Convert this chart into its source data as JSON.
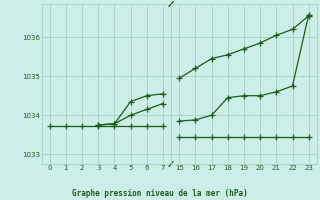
{
  "bg_color": "#cceee8",
  "grid_color": "#99ccbb",
  "line_color": "#1a5c1a",
  "title": "Graphe pression niveau de la mer (hPa)",
  "ylabel_ticks": [
    1033,
    1034,
    1035,
    1036
  ],
  "ylim": [
    1032.75,
    1036.85
  ],
  "x_ticks_left": [
    0,
    1,
    2,
    3,
    4,
    5,
    6,
    7
  ],
  "x_ticks_right": [
    15,
    16,
    17,
    18,
    19,
    20,
    21,
    22,
    23
  ],
  "lines": [
    {
      "x": [
        0,
        1,
        2,
        3,
        4,
        5,
        6,
        7,
        15,
        16,
        17,
        18,
        19,
        20,
        21,
        22,
        23
      ],
      "y": [
        1033.72,
        1033.72,
        1033.72,
        1033.72,
        1033.72,
        1033.72,
        1033.72,
        1033.72,
        1033.45,
        1033.45,
        1033.45,
        1033.45,
        1033.45,
        1033.45,
        1033.45,
        1033.45,
        1033.45
      ]
    },
    {
      "x": [
        3,
        4,
        5,
        6,
        7,
        15,
        16,
        17,
        18,
        19,
        20,
        21,
        22,
        23
      ],
      "y": [
        1033.75,
        1033.78,
        1034.0,
        1034.15,
        1034.3,
        1034.95,
        1035.2,
        1035.45,
        1035.55,
        1035.7,
        1035.85,
        1036.05,
        1036.2,
        1036.55
      ]
    },
    {
      "x": [
        3,
        4,
        5,
        6,
        7,
        15,
        16,
        17,
        18,
        19,
        20,
        21,
        22,
        23
      ],
      "y": [
        1033.75,
        1033.78,
        1034.35,
        1034.5,
        1034.55,
        1033.85,
        1033.88,
        1034.0,
        1034.45,
        1034.5,
        1034.5,
        1034.6,
        1034.75,
        1036.58
      ]
    }
  ]
}
